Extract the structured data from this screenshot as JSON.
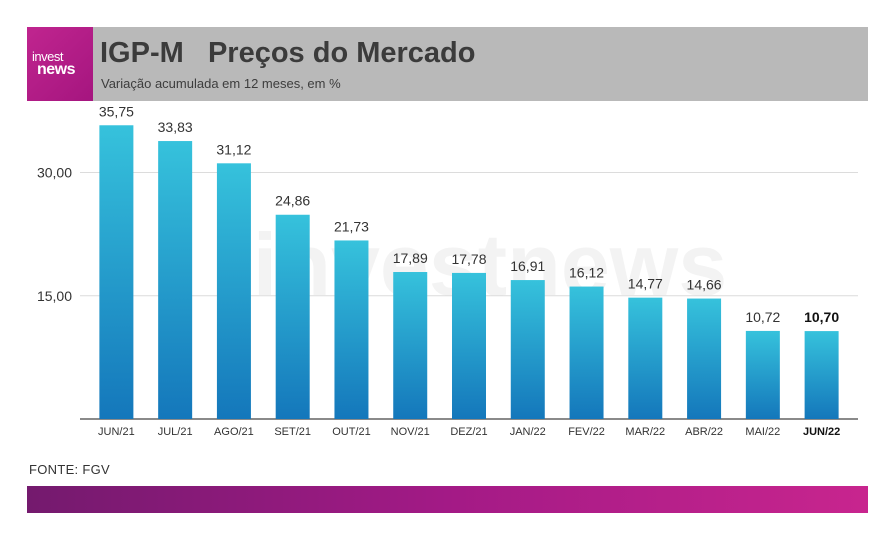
{
  "header": {
    "logo_top": "invest",
    "logo_bottom": "news",
    "title": "IGP-M   Preços do Mercado",
    "subtitle": "Variação acumulada em 12 meses, em %"
  },
  "watermark": "investnews",
  "source": "FONTE: FGV",
  "colors": {
    "header_bg": "#b9b9b9",
    "logo_bg": "#c0258f",
    "bar_top": "#36c2dc",
    "bar_bottom": "#1477bb",
    "bottom_bar_start": "#741a6e",
    "bottom_bar_end": "#c8258e"
  },
  "chart_data": {
    "type": "bar",
    "title": "IGP-M   Preços do Mercado",
    "subtitle": "Variação acumulada em 12 meses, em %",
    "categories": [
      "JUN/21",
      "JUL/21",
      "AGO/21",
      "SET/21",
      "OUT/21",
      "NOV/21",
      "DEZ/21",
      "JAN/22",
      "FEV/22",
      "MAR/22",
      "ABR/22",
      "MAI/22",
      "JUN/22"
    ],
    "values": [
      35.75,
      33.83,
      31.12,
      24.86,
      21.73,
      17.89,
      17.78,
      16.91,
      16.12,
      14.77,
      14.66,
      10.72,
      10.7
    ],
    "value_labels": [
      "35,75",
      "33,83",
      "31,12",
      "24,86",
      "21,73",
      "17,89",
      "17,78",
      "16,91",
      "16,12",
      "14,77",
      "14,66",
      "10,72",
      "10,70"
    ],
    "highlight_index": 12,
    "y_ticks": [
      15,
      30
    ],
    "y_tick_labels": [
      "15,00",
      "30,00"
    ],
    "ylim": [
      0,
      37
    ],
    "grid": true,
    "xlabel": "",
    "ylabel": ""
  }
}
